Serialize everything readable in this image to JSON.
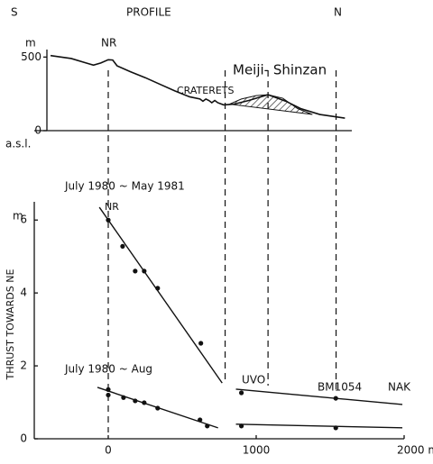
{
  "chart_data": [
    {
      "type": "line",
      "title": "PROFILE",
      "left_label": "S",
      "right_label": "N",
      "y_unit": "m",
      "datum_label": "a.s.l.",
      "peak_label": "NR",
      "dome_label": "Meiji- Shinzan",
      "craterets_label": "CRATERETS",
      "xlim": [
        -500,
        2000
      ],
      "ylim": [
        0,
        600
      ],
      "yticks": [
        0,
        500
      ],
      "color": "#111",
      "x": [
        -390,
        -250,
        -150,
        -100,
        -50,
        0,
        30,
        60,
        150,
        250,
        350,
        450,
        550,
        620,
        640,
        660,
        680,
        700,
        720,
        740,
        780,
        850,
        950,
        1080,
        1200,
        1300,
        1430,
        1600
      ],
      "values": [
        510,
        490,
        460,
        445,
        460,
        482,
        480,
        440,
        400,
        360,
        315,
        270,
        230,
        215,
        200,
        215,
        205,
        190,
        205,
        190,
        175,
        180,
        205,
        244,
        200,
        150,
        110,
        85
      ],
      "dome": {
        "x": [
          820,
          900,
          1000,
          1080,
          1180,
          1280,
          1380
        ],
        "values": [
          180,
          215,
          238,
          244,
          220,
          150,
          110
        ]
      },
      "dashed_x": [
        0,
        790,
        1080,
        1540
      ]
    },
    {
      "type": "scatter",
      "y_label": "THRUST TOWARDS NE",
      "y_unit": "m",
      "xlim": [
        -500,
        2000
      ],
      "ylim": [
        0,
        6.5
      ],
      "yticks": [
        0,
        2,
        4,
        6
      ],
      "xticks": [
        0,
        1000,
        {
          "value": 2000,
          "label": "2000 m"
        }
      ],
      "station_labels": [
        "NR",
        "UVO",
        "BM1054",
        "NAK"
      ],
      "series": [
        {
          "name": "July 1980 ~ May 1981",
          "color": "#111",
          "x": [
            0,
            97,
            182,
            243,
            334,
            626,
            900,
            1538
          ],
          "values": [
            6.0,
            5.28,
            4.6,
            4.6,
            4.13,
            2.62,
            1.26,
            1.11
          ]
        },
        {
          "name": "July 1980 ~ Aug",
          "color": "#111",
          "x": [
            0,
            0,
            103,
            182,
            243,
            334,
            620,
            669,
            900,
            1538
          ],
          "values": [
            1.35,
            1.2,
            1.13,
            1.04,
            0.99,
            0.84,
            0.52,
            0.35,
            0.35,
            0.3
          ]
        }
      ],
      "fit_lines": [
        {
          "x": [
            -60,
            770
          ],
          "values": [
            6.35,
            1.53
          ]
        },
        {
          "x": [
            -73,
            742
          ],
          "values": [
            1.41,
            0.3
          ]
        },
        {
          "x": [
            863,
            1988
          ],
          "values": [
            1.36,
            0.94
          ]
        },
        {
          "x": [
            863,
            1988
          ],
          "values": [
            0.4,
            0.3
          ]
        }
      ]
    }
  ]
}
